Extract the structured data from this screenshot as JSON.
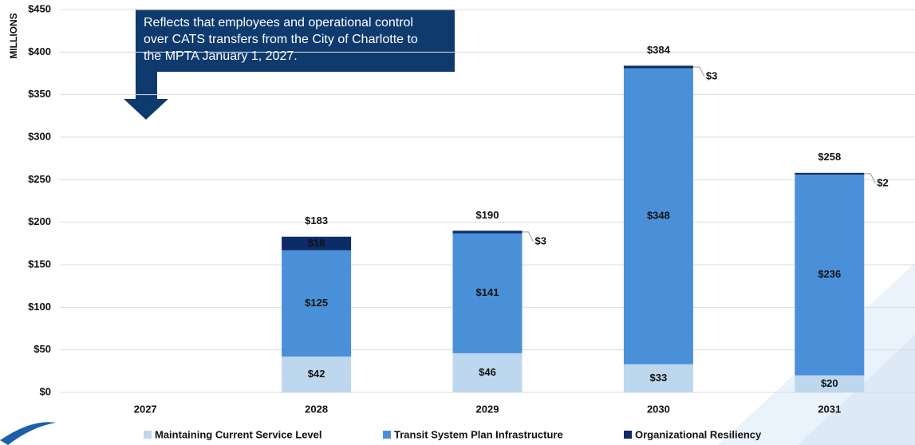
{
  "chart_data": {
    "type": "stacked_bar",
    "y_axis_label": "MILLIONS",
    "annotation": "Reflects that employees and operational control over CATS transfers from the City of Charlotte to the MPTA January 1, 2027.",
    "categories": [
      "2027",
      "2028",
      "2029",
      "2030",
      "2031"
    ],
    "series": [
      {
        "name": "Maintaining Current Service Level",
        "color": "#bdd7ee",
        "values": [
          null,
          42,
          46,
          33,
          20
        ],
        "value_labels": [
          null,
          "$42",
          "$46",
          "$33",
          "$20"
        ]
      },
      {
        "name": "Transit System Plan Infrastructure",
        "color": "#4a90d9",
        "values": [
          null,
          125,
          141,
          348,
          236
        ],
        "value_labels": [
          null,
          "$125",
          "$141",
          "$348",
          "$236"
        ]
      },
      {
        "name": "Organizational Resiliency",
        "color": "#0d2b66",
        "values": [
          null,
          16,
          3,
          3,
          2
        ],
        "value_labels": [
          null,
          "$16",
          "$3",
          "$3",
          "$2"
        ]
      }
    ],
    "totals": [
      null,
      183,
      190,
      384,
      258
    ],
    "total_labels": [
      null,
      "$183",
      "$190",
      "$384",
      "$258"
    ],
    "ylim": [
      0,
      450
    ],
    "yticks": [
      {
        "value": 0,
        "label": "$0"
      },
      {
        "value": 50,
        "label": "$50"
      },
      {
        "value": 100,
        "label": "$100"
      },
      {
        "value": 150,
        "label": "$150"
      },
      {
        "value": 200,
        "label": "$200"
      },
      {
        "value": 250,
        "label": "$250"
      },
      {
        "value": 300,
        "label": "$300"
      },
      {
        "value": 350,
        "label": "$350"
      },
      {
        "value": 400,
        "label": "$400"
      },
      {
        "value": 450,
        "label": "$450"
      }
    ],
    "grid": true,
    "legend": "bottom"
  }
}
